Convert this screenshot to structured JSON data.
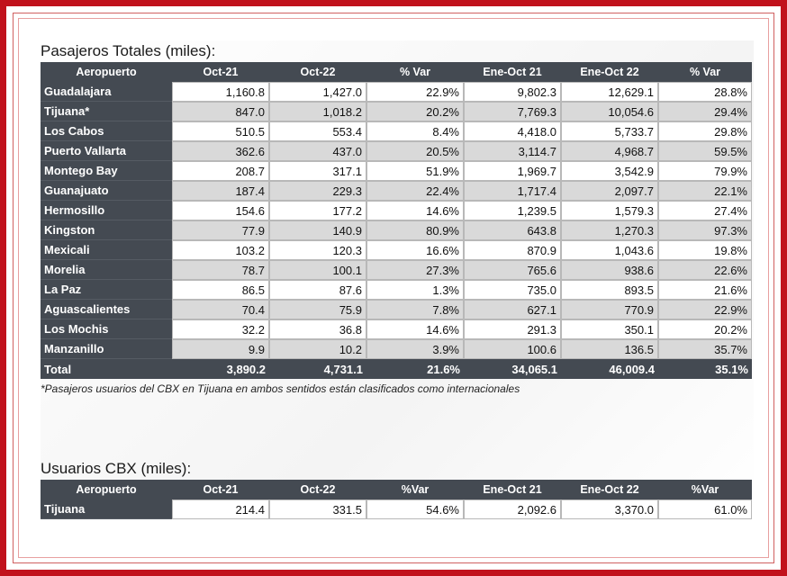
{
  "table1": {
    "title": "Pasajeros Totales (miles):",
    "headers": [
      "Aeropuerto",
      "Oct-21",
      "Oct-22",
      "% Var",
      "Ene-Oct 21",
      "Ene-Oct 22",
      "% Var"
    ],
    "rows": [
      [
        "Guadalajara",
        "1,160.8",
        "1,427.0",
        "22.9%",
        "9,802.3",
        "12,629.1",
        "28.8%"
      ],
      [
        "Tijuana*",
        "847.0",
        "1,018.2",
        "20.2%",
        "7,769.3",
        "10,054.6",
        "29.4%"
      ],
      [
        "Los Cabos",
        "510.5",
        "553.4",
        "8.4%",
        "4,418.0",
        "5,733.7",
        "29.8%"
      ],
      [
        "Puerto Vallarta",
        "362.6",
        "437.0",
        "20.5%",
        "3,114.7",
        "4,968.7",
        "59.5%"
      ],
      [
        "Montego Bay",
        "208.7",
        "317.1",
        "51.9%",
        "1,969.7",
        "3,542.9",
        "79.9%"
      ],
      [
        "Guanajuato",
        "187.4",
        "229.3",
        "22.4%",
        "1,717.4",
        "2,097.7",
        "22.1%"
      ],
      [
        "Hermosillo",
        "154.6",
        "177.2",
        "14.6%",
        "1,239.5",
        "1,579.3",
        "27.4%"
      ],
      [
        "Kingston",
        "77.9",
        "140.9",
        "80.9%",
        "643.8",
        "1,270.3",
        "97.3%"
      ],
      [
        "Mexicali",
        "103.2",
        "120.3",
        "16.6%",
        "870.9",
        "1,043.6",
        "19.8%"
      ],
      [
        "Morelia",
        "78.7",
        "100.1",
        "27.3%",
        "765.6",
        "938.6",
        "22.6%"
      ],
      [
        "La Paz",
        "86.5",
        "87.6",
        "1.3%",
        "735.0",
        "893.5",
        "21.6%"
      ],
      [
        "Aguascalientes",
        "70.4",
        "75.9",
        "7.8%",
        "627.1",
        "770.9",
        "22.9%"
      ],
      [
        "Los Mochis",
        "32.2",
        "36.8",
        "14.6%",
        "291.3",
        "350.1",
        "20.2%"
      ],
      [
        "Manzanillo",
        "9.9",
        "10.2",
        "3.9%",
        "100.6",
        "136.5",
        "35.7%"
      ]
    ],
    "total": [
      "Total",
      "3,890.2",
      "4,731.1",
      "21.6%",
      "34,065.1",
      "46,009.4",
      "35.1%"
    ],
    "note": "*Pasajeros usuarios del CBX en Tijuana en ambos sentidos están clasificados como internacionales"
  },
  "table2": {
    "title": "Usuarios CBX (miles):",
    "headers": [
      "Aeropuerto",
      "Oct-21",
      "Oct-22",
      "%Var",
      "Ene-Oct 21",
      "Ene-Oct 22",
      "%Var"
    ],
    "rows": [
      [
        "Tijuana",
        "214.4",
        "331.5",
        "54.6%",
        "2,092.6",
        "3,370.0",
        "61.0%"
      ]
    ]
  },
  "colors": {
    "frame": "#c1121c",
    "header_bg": "#444a52",
    "row_alt": "#d9d9d9"
  }
}
